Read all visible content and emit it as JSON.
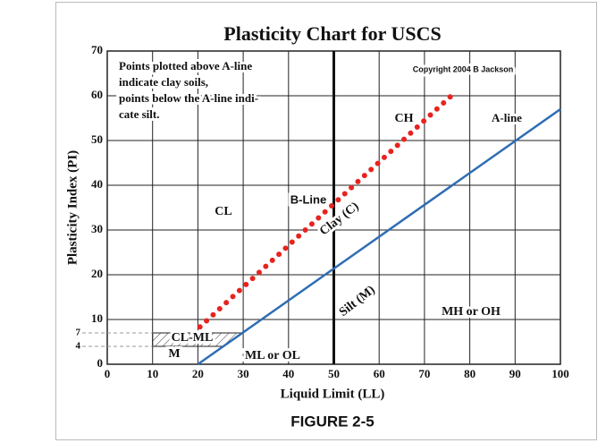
{
  "chart_data": {
    "type": "line",
    "title": "Plasticity Chart for USCS",
    "xlabel": "Liquid Limit (LL)",
    "ylabel": "Plasticity Index (PI)",
    "caption": "FIGURE 2-5",
    "note": [
      "Points plotted above A-line",
      "indicate clay soils,",
      "points below the A-line indi-",
      "cate silt."
    ],
    "copyright": "Copyright 2004 B Jackson",
    "zones": [
      "CH",
      "CL",
      "Clay (C)",
      "Silt (M)",
      "MH or OH",
      "ML or OL",
      "CL-ML",
      "M"
    ],
    "xlim": [
      0,
      100
    ],
    "xticks": [
      0,
      10,
      20,
      30,
      40,
      50,
      60,
      70,
      80,
      90,
      100
    ],
    "ylim": [
      0,
      70
    ],
    "yticks": [
      0,
      10,
      20,
      30,
      40,
      50,
      60,
      70
    ],
    "ref_yticks": [
      4,
      7
    ],
    "vline": 50,
    "grid": true,
    "series": [
      {
        "name": "A-line",
        "color": "#2e6db4",
        "x": [
          20,
          100
        ],
        "values": [
          0,
          57
        ]
      },
      {
        "name": "B-Line",
        "color": "#e8231f",
        "x": [
          19,
          77
        ],
        "values": [
          7,
          61
        ],
        "dotted": true
      }
    ]
  }
}
